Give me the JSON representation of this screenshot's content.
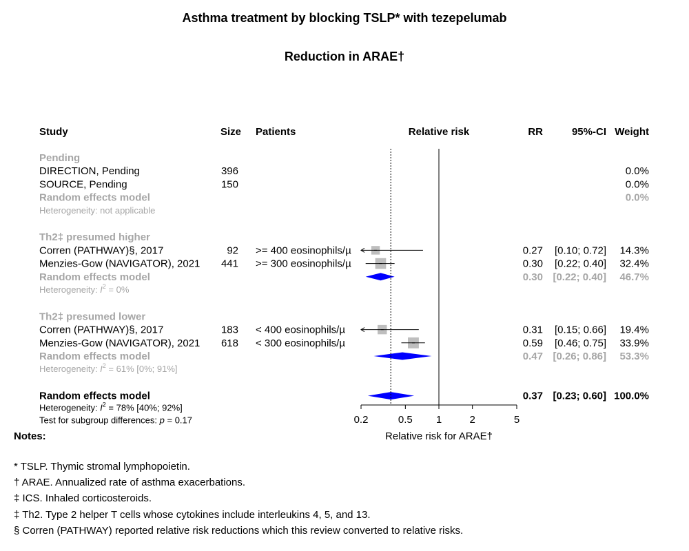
{
  "title": "Asthma treatment by blocking TSLP* with tezepelumab",
  "subtitle": "Reduction in ARAE†",
  "columns": {
    "study": "Study",
    "size": "Size",
    "patients": "Patients",
    "relative_risk": "Relative risk",
    "rr": "RR",
    "ci": "95%-CI",
    "weight": "Weight"
  },
  "chart_data": {
    "type": "forest",
    "xlabel": "Relative risk for ARAE†",
    "scale": "log",
    "xlim": [
      0.2,
      5
    ],
    "x_ticks": [
      0.2,
      0.5,
      1,
      2,
      5
    ],
    "x_tick_labels": [
      "0.2",
      "0.5",
      "1",
      "2",
      "5"
    ],
    "reference_line": 1,
    "overall_line": 0.37,
    "groups": [
      {
        "label": "Pending",
        "studies": [
          {
            "study": "DIRECTION, Pending",
            "size": "396",
            "patients": "",
            "weight": "0.0%"
          },
          {
            "study": "SOURCE, Pending",
            "size": "150",
            "patients": "",
            "weight": "0.0%"
          }
        ],
        "model": {
          "label": "Random effects model",
          "weight": "0.0%"
        },
        "heterogeneity": "Heterogeneity: not applicable"
      },
      {
        "label": "Th2‡ presumed higher",
        "studies": [
          {
            "study": "Corren (PATHWAY)§, 2017",
            "size": "92",
            "patients": ">= 400 eosinophils/µ",
            "rr": 0.27,
            "lo": 0.1,
            "hi": 0.72,
            "rr_text": "0.27",
            "ci_text": "[0.10; 0.72]",
            "weight": "14.3%",
            "arrow_left": true
          },
          {
            "study": "Menzies-Gow (NAVIGATOR), 2021",
            "size": "441",
            "patients": ">= 300 eosinophils/µ",
            "rr": 0.3,
            "lo": 0.22,
            "hi": 0.4,
            "rr_text": "0.30",
            "ci_text": "[0.22; 0.40]",
            "weight": "32.4%"
          }
        ],
        "model": {
          "label": "Random effects model",
          "rr": 0.3,
          "lo": 0.22,
          "hi": 0.4,
          "rr_text": "0.30",
          "ci_text": "[0.22; 0.40]",
          "weight": "46.7%"
        },
        "heterogeneity_prefix": "Heterogeneity: ",
        "heterogeneity_i2": "I",
        "heterogeneity_sup": "2",
        "heterogeneity_suffix": " = 0%"
      },
      {
        "label": "Th2‡ presumed lower",
        "studies": [
          {
            "study": "Corren (PATHWAY)§, 2017",
            "size": "183",
            "patients": "< 400 eosinophils/µ",
            "rr": 0.31,
            "lo": 0.15,
            "hi": 0.66,
            "rr_text": "0.31",
            "ci_text": "[0.15; 0.66]",
            "weight": "19.4%",
            "arrow_left": true
          },
          {
            "study": "Menzies-Gow (NAVIGATOR), 2021",
            "size": "618",
            "patients": "< 300 eosinophils/µ",
            "rr": 0.59,
            "lo": 0.46,
            "hi": 0.75,
            "rr_text": "0.59",
            "ci_text": "[0.46; 0.75]",
            "weight": "33.9%"
          }
        ],
        "model": {
          "label": "Random effects model",
          "rr": 0.47,
          "lo": 0.26,
          "hi": 0.86,
          "rr_text": "0.47",
          "ci_text": "[0.26; 0.86]",
          "weight": "53.3%"
        },
        "heterogeneity_prefix": "Heterogeneity: ",
        "heterogeneity_i2": "I",
        "heterogeneity_sup": "2",
        "heterogeneity_suffix": " = 61% [0%; 91%]"
      }
    ],
    "overall": {
      "label": "Random effects model",
      "rr": 0.37,
      "lo": 0.23,
      "hi": 0.6,
      "rr_text": "0.37",
      "ci_text": "[0.23; 0.60]",
      "weight": "100.0%",
      "heterogeneity_prefix": "Heterogeneity: ",
      "heterogeneity_i2": "I",
      "heterogeneity_sup": "2",
      "heterogeneity_suffix": " = 78% [40%; 92%]",
      "subgroup_test_prefix": "Test for subgroup differences:  ",
      "subgroup_test_p": "p",
      "subgroup_test_suffix": " = 0.17"
    }
  },
  "notes_heading": "Notes:",
  "notes": [
    "* TSLP. Thymic stromal lymphopoietin.",
    "† ARAE. Annualized rate of asthma exacerbations.",
    "‡ ICS. Inhaled corticosteroids.",
    "‡ Th2. Type 2 helper T cells whose cytokines include interleukins 4, 5, and 13.",
    "§ Corren (PATHWAY) reported relative risk reductions which this review converted to relative risks."
  ],
  "colors": {
    "text": "#000000",
    "muted": "#a6a6a6",
    "diamond": "#0000ff",
    "square": "#bebebe"
  }
}
